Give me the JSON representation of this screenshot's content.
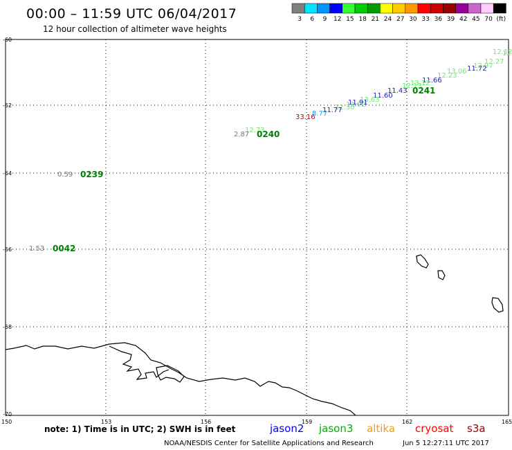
{
  "header": {
    "title": "00:00 – 11:59 UTC 06/04/2017",
    "subtitle": "12 hour collection of altimeter wave heights"
  },
  "color_scale": {
    "swatches": [
      {
        "label": "3",
        "color": "#808080"
      },
      {
        "label": "6",
        "color": "#00e5ff"
      },
      {
        "label": "9",
        "color": "#0096ff"
      },
      {
        "label": "12",
        "color": "#0000ff"
      },
      {
        "label": "15",
        "color": "#33ff33"
      },
      {
        "label": "18",
        "color": "#00cc00"
      },
      {
        "label": "21",
        "color": "#009900"
      },
      {
        "label": "24",
        "color": "#ffff00"
      },
      {
        "label": "27",
        "color": "#ffcc00"
      },
      {
        "label": "30",
        "color": "#ff9900"
      },
      {
        "label": "33",
        "color": "#ff0000"
      },
      {
        "label": "36",
        "color": "#cc0000"
      },
      {
        "label": "39",
        "color": "#990000"
      },
      {
        "label": "42",
        "color": "#990099"
      },
      {
        "label": "45",
        "color": "#cc66cc"
      },
      {
        "label": "70",
        "color": "#ffccff"
      },
      {
        "label": "(ft)",
        "color": "#000000"
      }
    ]
  },
  "map": {
    "lat_ticks": [
      "-60",
      "-62",
      "-64",
      "-66",
      "-68",
      "-70"
    ],
    "lon_ticks": [
      "150",
      "153",
      "156",
      "159",
      "162",
      "165"
    ],
    "value_labels": [
      {
        "text": "12.12",
        "color": "#66ee66"
      },
      {
        "text": "12.46",
        "color": "#66ee66"
      },
      {
        "text": "12.27",
        "color": "#66ee66"
      },
      {
        "text": "12.97",
        "color": "#66ee66"
      },
      {
        "text": "11.72",
        "color": "#1f1fb0"
      },
      {
        "text": "13.06",
        "color": "#66ee66"
      },
      {
        "text": "12.23",
        "color": "#66ee66"
      },
      {
        "text": "11.66",
        "color": "#1f1fb0"
      },
      {
        "text": "13.12",
        "color": "#66ee66"
      },
      {
        "text": "12.13",
        "color": "#66ee66"
      },
      {
        "text": "11.43",
        "color": "#1f1fb0"
      },
      {
        "text": "11.60",
        "color": "#1f1fb0"
      },
      {
        "text": "13.63",
        "color": "#66ee66"
      },
      {
        "text": "13.02",
        "color": "#66ee66"
      },
      {
        "text": "12.30",
        "color": "#66ee66"
      },
      {
        "text": "11.91",
        "color": "#1f1fb0"
      },
      {
        "text": "11.77",
        "color": "#1f1fb0"
      },
      {
        "text": "8.77",
        "color": "#2a9df4"
      },
      {
        "text": "33.16",
        "color": "#cc0000"
      },
      {
        "text": "12.73",
        "color": "#66ee66"
      },
      {
        "text": "2.87",
        "color": "#777777"
      },
      {
        "text": "0.59",
        "color": "#777777"
      },
      {
        "text": "1.53",
        "color": "#777777"
      }
    ],
    "pass_labels": [
      "0241",
      "0240",
      "0239",
      "0042"
    ]
  },
  "bottom": {
    "note": "note: 1) Time is in UTC; 2) SWH is in feet",
    "missions": [
      {
        "name": "jason2",
        "color": "#0000ff"
      },
      {
        "name": "jason3",
        "color": "#00b000"
      },
      {
        "name": "altika",
        "color": "#ff9900"
      },
      {
        "name": "cryosat",
        "color": "#ff0000"
      },
      {
        "name": "s3a",
        "color": "#990000"
      }
    ],
    "credit": "NOAA/NESDIS Center for Satellite Applications and Research",
    "timestamp": "Jun  5 12:27:11 UTC 2017"
  }
}
